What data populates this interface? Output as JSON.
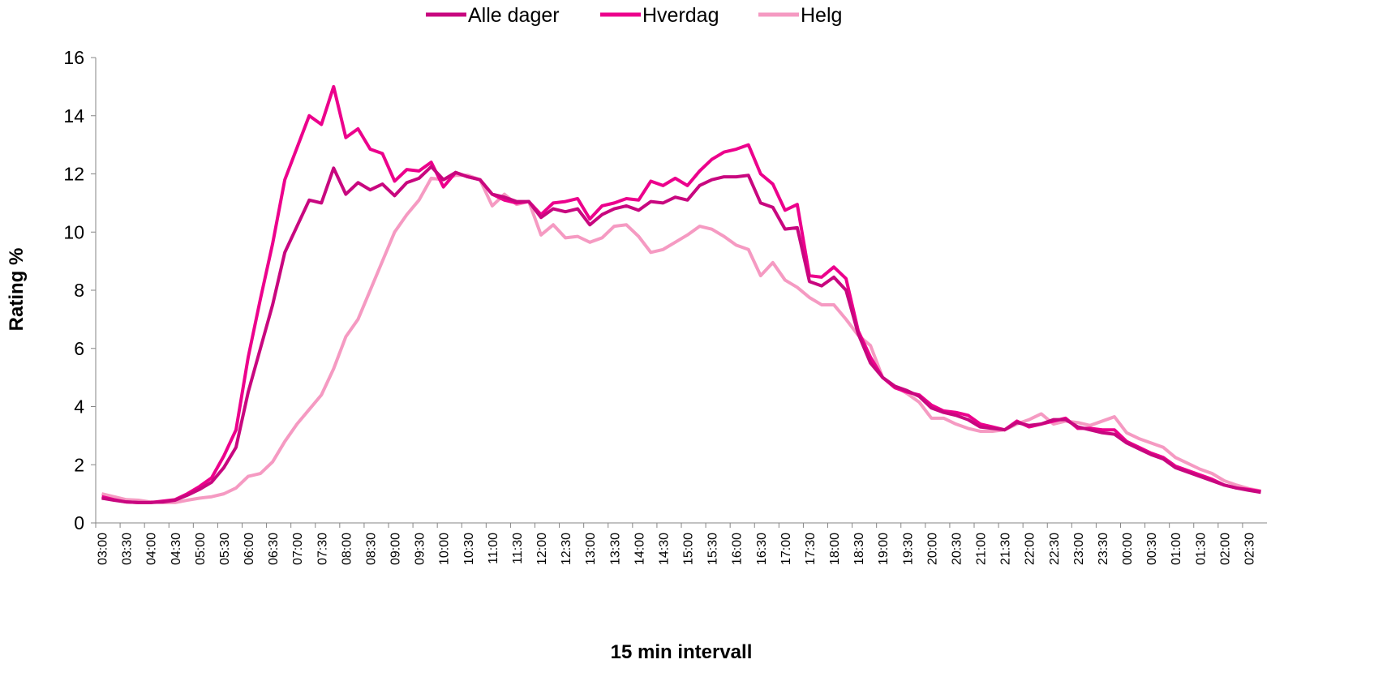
{
  "chart_data": {
    "type": "line",
    "x_label": "15 min intervall",
    "y_label": "Rating %",
    "categories": [
      "03:00",
      null,
      "03:30",
      null,
      "04:00",
      null,
      "04:30",
      null,
      "05:00",
      null,
      "05:30",
      null,
      "06:00",
      null,
      "06:30",
      null,
      "07:00",
      null,
      "07:30",
      null,
      "08:00",
      null,
      "08:30",
      null,
      "09:00",
      null,
      "09:30",
      null,
      "10:00",
      null,
      "10:30",
      null,
      "11:00",
      null,
      "11:30",
      null,
      "12:00",
      null,
      "12:30",
      null,
      "13:00",
      null,
      "13:30",
      null,
      "14:00",
      null,
      "14:30",
      null,
      "15:00",
      null,
      "15:30",
      null,
      "16:00",
      null,
      "16:30",
      null,
      "17:00",
      null,
      "17:30",
      null,
      "18:00",
      null,
      "18:30",
      null,
      "19:00",
      null,
      "19:30",
      null,
      "20:00",
      null,
      "20:30",
      null,
      "21:00",
      null,
      "21:30",
      null,
      "22:00",
      null,
      "22:30",
      null,
      "23:00",
      null,
      "23:30",
      null,
      "00:00",
      null,
      "00:30",
      null,
      "01:00",
      null,
      "01:30",
      null,
      "02:00",
      null,
      "02:30",
      null
    ],
    "series": [
      {
        "name": "Alle dager",
        "color": "#c8077f",
        "values": [
          0.85,
          0.78,
          0.72,
          0.7,
          0.7,
          0.72,
          0.78,
          0.95,
          1.15,
          1.4,
          1.9,
          2.6,
          4.5,
          6.0,
          7.5,
          9.3,
          10.2,
          11.1,
          11.0,
          12.2,
          11.3,
          11.7,
          11.45,
          11.65,
          11.25,
          11.7,
          11.85,
          12.25,
          11.8,
          12.05,
          11.9,
          11.8,
          11.3,
          11.2,
          11.05,
          11.05,
          10.5,
          10.8,
          10.7,
          10.8,
          10.25,
          10.6,
          10.8,
          10.9,
          10.75,
          11.05,
          11.0,
          11.2,
          11.1,
          11.6,
          11.8,
          11.9,
          11.9,
          11.95,
          11.0,
          10.85,
          10.1,
          10.15,
          8.3,
          8.15,
          8.45,
          8.0,
          6.5,
          5.5,
          5.0,
          4.7,
          4.55,
          4.35,
          3.95,
          3.8,
          3.7,
          3.55,
          3.3,
          3.25,
          3.2,
          3.45,
          3.35,
          3.4,
          3.55,
          3.55,
          3.3,
          3.2,
          3.1,
          3.05,
          2.75,
          2.55,
          2.35,
          2.2,
          1.9,
          1.75,
          1.6,
          1.45,
          1.3,
          1.2,
          1.12,
          1.05
        ]
      },
      {
        "name": "Hverdag",
        "color": "#ec008c",
        "values": [
          0.9,
          0.8,
          0.72,
          0.7,
          0.7,
          0.75,
          0.8,
          1.0,
          1.25,
          1.55,
          2.3,
          3.2,
          5.7,
          7.7,
          9.6,
          11.8,
          12.9,
          14.0,
          13.7,
          15.0,
          13.25,
          13.55,
          12.85,
          12.7,
          11.75,
          12.15,
          12.1,
          12.4,
          11.55,
          12.05,
          11.9,
          11.8,
          11.3,
          11.1,
          11.0,
          11.05,
          10.6,
          11.0,
          11.05,
          11.15,
          10.45,
          10.9,
          11.0,
          11.15,
          11.1,
          11.75,
          11.6,
          11.85,
          11.6,
          12.1,
          12.5,
          12.75,
          12.85,
          13.0,
          12.0,
          11.65,
          10.75,
          10.95,
          8.5,
          8.45,
          8.8,
          8.4,
          6.6,
          5.7,
          5.0,
          4.65,
          4.5,
          4.4,
          4.05,
          3.85,
          3.8,
          3.7,
          3.4,
          3.3,
          3.2,
          3.5,
          3.3,
          3.4,
          3.5,
          3.6,
          3.25,
          3.25,
          3.2,
          3.2,
          2.8,
          2.6,
          2.4,
          2.25,
          1.95,
          1.8,
          1.65,
          1.5,
          1.3,
          1.2,
          1.15,
          1.08
        ]
      },
      {
        "name": "Helg",
        "color": "#f59ac2",
        "values": [
          1.0,
          0.9,
          0.8,
          0.78,
          0.72,
          0.7,
          0.7,
          0.78,
          0.85,
          0.9,
          1.0,
          1.2,
          1.6,
          1.7,
          2.1,
          2.8,
          3.4,
          3.9,
          4.4,
          5.3,
          6.4,
          7.0,
          8.0,
          9.0,
          10.0,
          10.6,
          11.1,
          11.85,
          11.8,
          11.95,
          11.95,
          11.8,
          10.9,
          11.3,
          10.95,
          11.05,
          9.9,
          10.25,
          9.8,
          9.85,
          9.65,
          9.8,
          10.2,
          10.25,
          9.85,
          9.3,
          9.4,
          9.65,
          9.9,
          10.2,
          10.1,
          9.85,
          9.55,
          9.4,
          8.5,
          8.95,
          8.35,
          8.1,
          7.75,
          7.5,
          7.5,
          7.0,
          6.45,
          6.1,
          5.0,
          4.7,
          4.45,
          4.15,
          3.6,
          3.6,
          3.4,
          3.25,
          3.15,
          3.15,
          3.2,
          3.4,
          3.55,
          3.75,
          3.4,
          3.5,
          3.45,
          3.35,
          3.5,
          3.65,
          3.1,
          2.9,
          2.75,
          2.6,
          2.25,
          2.05,
          1.85,
          1.7,
          1.45,
          1.3,
          1.18,
          1.1
        ]
      }
    ],
    "ylim": [
      0,
      16
    ],
    "yticks": [
      0,
      2,
      4,
      6,
      8,
      10,
      12,
      14,
      16
    ],
    "grid": false,
    "legend": "top"
  }
}
